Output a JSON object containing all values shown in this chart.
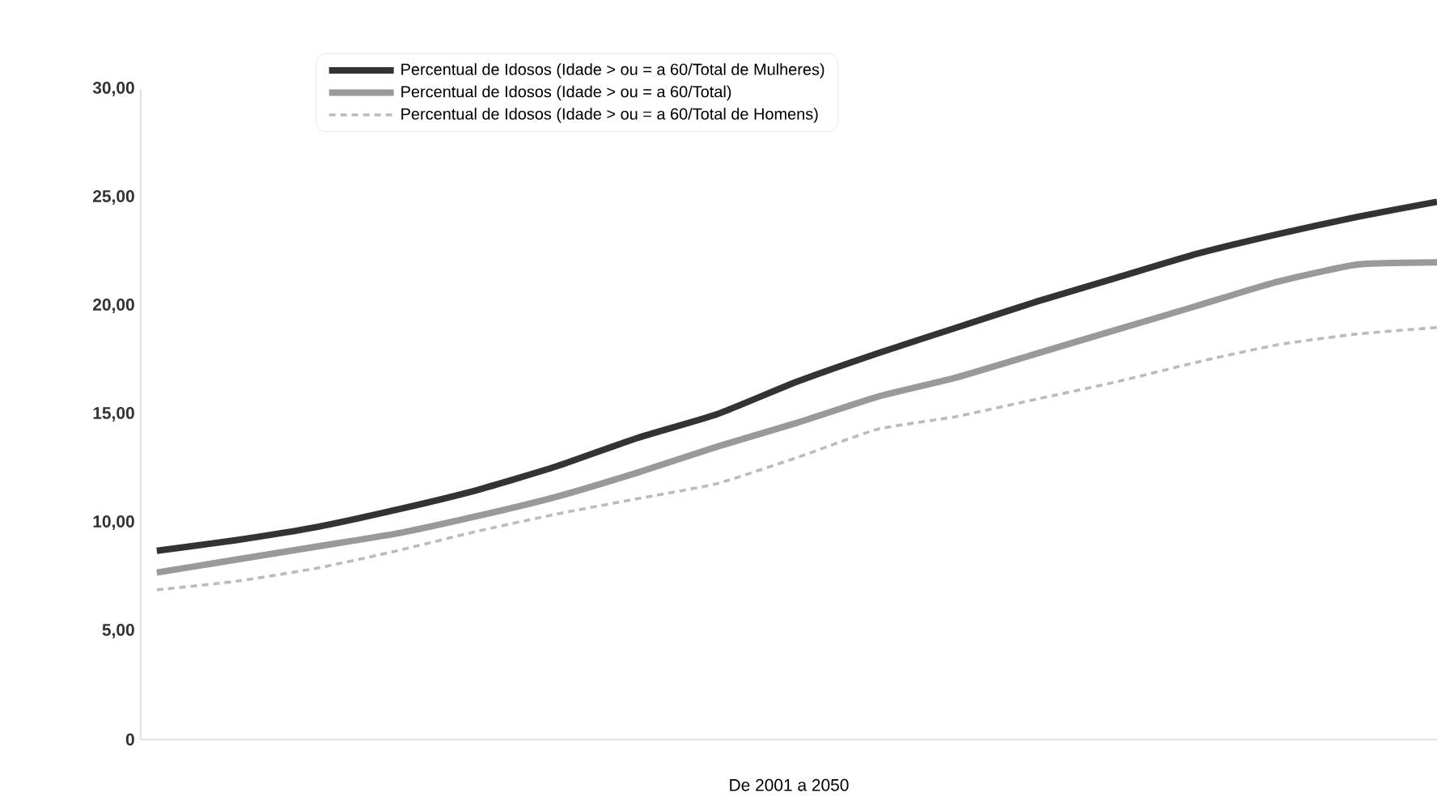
{
  "chart_data": {
    "type": "line",
    "xlabel": "De 2001 a 2050",
    "categories": [
      null,
      null,
      null,
      null,
      null,
      null,
      null,
      null,
      null,
      null,
      null,
      null,
      null,
      null,
      null,
      null,
      null
    ],
    "series": [
      {
        "name": "Percentual de Idosos (Idade > ou = a 60/Total de Mulheres)",
        "color": "#333333",
        "line_style": "solid",
        "values": [
          8.7,
          9.2,
          9.8,
          10.6,
          11.5,
          12.6,
          13.9,
          15.0,
          16.5,
          17.8,
          19.0,
          20.2,
          21.3,
          22.4,
          23.3,
          24.1,
          24.8
        ]
      },
      {
        "name": "Percentual de Idosos (Idade > ou = a 60/Total)",
        "color": "#999999",
        "line_style": "solid",
        "values": [
          7.7,
          8.3,
          8.9,
          9.5,
          10.3,
          11.2,
          12.3,
          13.5,
          14.6,
          15.8,
          16.7,
          17.8,
          18.9,
          20.0,
          21.1,
          21.9,
          22.0
        ]
      },
      {
        "name": "Percentual de Idosos (Idade > ou = a 60/Total de Homens)",
        "color": "#bbbbbb",
        "line_style": "dashed",
        "values": [
          6.9,
          7.3,
          7.9,
          8.7,
          9.6,
          10.4,
          11.1,
          11.8,
          13.0,
          14.3,
          14.9,
          15.7,
          16.5,
          17.4,
          18.2,
          18.7,
          19.0
        ]
      }
    ],
    "ylim": [
      0,
      30
    ],
    "yticks": [
      {
        "value": 0,
        "label": "0"
      },
      {
        "value": 5,
        "label": "5,00"
      },
      {
        "value": 10,
        "label": "10,00"
      },
      {
        "value": 15,
        "label": "15,00"
      },
      {
        "value": 20,
        "label": "20,00"
      },
      {
        "value": 25,
        "label": "25,00"
      },
      {
        "value": 30,
        "label": "30,00"
      }
    ],
    "tick_labels": "y",
    "grid": false,
    "legend": "top",
    "marker": "none"
  }
}
